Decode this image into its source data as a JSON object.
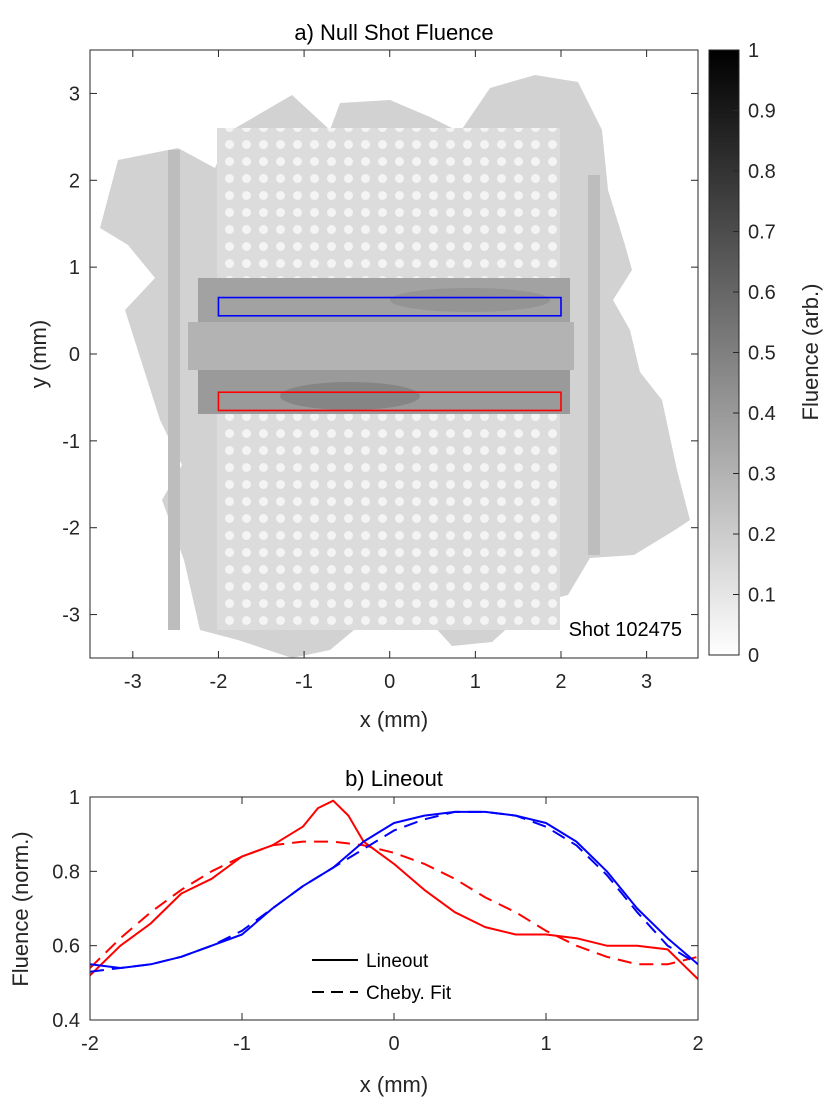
{
  "chart_data": [
    {
      "type": "heatmap",
      "title": "a) Null Shot Fluence",
      "xlabel": "x (mm)",
      "ylabel": "y (mm)",
      "xlim": [
        -3.5,
        3.6
      ],
      "ylim": [
        -3.5,
        3.5
      ],
      "xticks": [
        -3,
        -2,
        -1,
        0,
        1,
        2,
        3
      ],
      "yticks": [
        3,
        2,
        1,
        0,
        -1,
        -2,
        -3
      ],
      "annotation": "Shot 102475",
      "colorbar": {
        "label": "Fluence (arb.)",
        "range": [
          0,
          1
        ],
        "ticks": [
          "0",
          "0.1",
          "0.2",
          "0.3",
          "0.4",
          "0.5",
          "0.6",
          "0.7",
          "0.8",
          "0.9",
          "1"
        ],
        "colormap": "gray-inverted"
      },
      "regions": [
        {
          "name": "blue-region",
          "color": "#0000ff",
          "x": [
            -2,
            2
          ],
          "y": [
            0.44,
            0.65
          ]
        },
        {
          "name": "red-region",
          "color": "#ff0000",
          "x": [
            -2,
            2
          ],
          "y": [
            -0.65,
            -0.44
          ]
        }
      ],
      "features": {
        "bands": [
          {
            "y": [
              0.4,
              0.9
            ],
            "level": 0.55
          },
          {
            "y": [
              -0.4,
              0.4
            ],
            "level": 0.45
          },
          {
            "y": [
              -0.9,
              -0.4
            ],
            "level": 0.6
          }
        ],
        "grid_pattern": "square lattice of dots, approx. 0.2 mm pitch",
        "vertical_ridges_x": [
          -2.55,
          2.4
        ]
      }
    },
    {
      "type": "line",
      "title": "b) Lineout",
      "xlabel": "x (mm)",
      "ylabel": "Fluence (norm.)",
      "xlim": [
        -2,
        2
      ],
      "ylim": [
        0.4,
        1
      ],
      "xticks": [
        -2,
        -1,
        0,
        1,
        2
      ],
      "yticks": [
        1,
        0.8,
        0.6,
        0.4
      ],
      "legend": [
        {
          "label": "Lineout",
          "style": "solid"
        },
        {
          "label": "Cheby. Fit",
          "style": "dashed"
        }
      ],
      "series": [
        {
          "name": "red lineout",
          "color": "#ff0000",
          "style": "solid",
          "x": [
            -2,
            -1.8,
            -1.6,
            -1.4,
            -1.2,
            -1,
            -0.8,
            -0.6,
            -0.5,
            -0.4,
            -0.3,
            -0.2,
            -0.1,
            0,
            0.2,
            0.4,
            0.6,
            0.8,
            1,
            1.2,
            1.4,
            1.6,
            1.8,
            1.9,
            2
          ],
          "y": [
            0.52,
            0.6,
            0.66,
            0.74,
            0.78,
            0.84,
            0.87,
            0.92,
            0.97,
            0.99,
            0.95,
            0.88,
            0.85,
            0.82,
            0.75,
            0.69,
            0.65,
            0.63,
            0.63,
            0.62,
            0.6,
            0.6,
            0.59,
            0.55,
            0.51
          ]
        },
        {
          "name": "red fit",
          "color": "#ff0000",
          "style": "dashed",
          "x": [
            -2,
            -1.8,
            -1.6,
            -1.4,
            -1.2,
            -1,
            -0.8,
            -0.6,
            -0.4,
            -0.2,
            0,
            0.2,
            0.4,
            0.6,
            0.8,
            1,
            1.2,
            1.4,
            1.6,
            1.8,
            2
          ],
          "y": [
            0.54,
            0.62,
            0.69,
            0.75,
            0.8,
            0.84,
            0.87,
            0.88,
            0.88,
            0.87,
            0.85,
            0.82,
            0.78,
            0.73,
            0.69,
            0.64,
            0.6,
            0.57,
            0.55,
            0.55,
            0.57
          ]
        },
        {
          "name": "blue lineout",
          "color": "#0000ff",
          "style": "solid",
          "x": [
            -2,
            -1.8,
            -1.6,
            -1.4,
            -1.2,
            -1,
            -0.8,
            -0.6,
            -0.4,
            -0.2,
            0,
            0.2,
            0.4,
            0.6,
            0.8,
            1,
            1.2,
            1.4,
            1.6,
            1.8,
            2
          ],
          "y": [
            0.55,
            0.54,
            0.55,
            0.57,
            0.6,
            0.63,
            0.7,
            0.76,
            0.81,
            0.88,
            0.93,
            0.95,
            0.96,
            0.96,
            0.95,
            0.93,
            0.88,
            0.8,
            0.7,
            0.62,
            0.55
          ]
        },
        {
          "name": "blue fit",
          "color": "#0000ff",
          "style": "dashed",
          "x": [
            -2,
            -1.8,
            -1.6,
            -1.4,
            -1.2,
            -1,
            -0.8,
            -0.6,
            -0.4,
            -0.2,
            0,
            0.2,
            0.4,
            0.6,
            0.8,
            1,
            1.2,
            1.4,
            1.6,
            1.8,
            2
          ],
          "y": [
            0.53,
            0.54,
            0.55,
            0.57,
            0.6,
            0.64,
            0.7,
            0.76,
            0.81,
            0.86,
            0.91,
            0.94,
            0.96,
            0.96,
            0.95,
            0.92,
            0.87,
            0.79,
            0.69,
            0.6,
            0.55
          ]
        }
      ]
    }
  ]
}
